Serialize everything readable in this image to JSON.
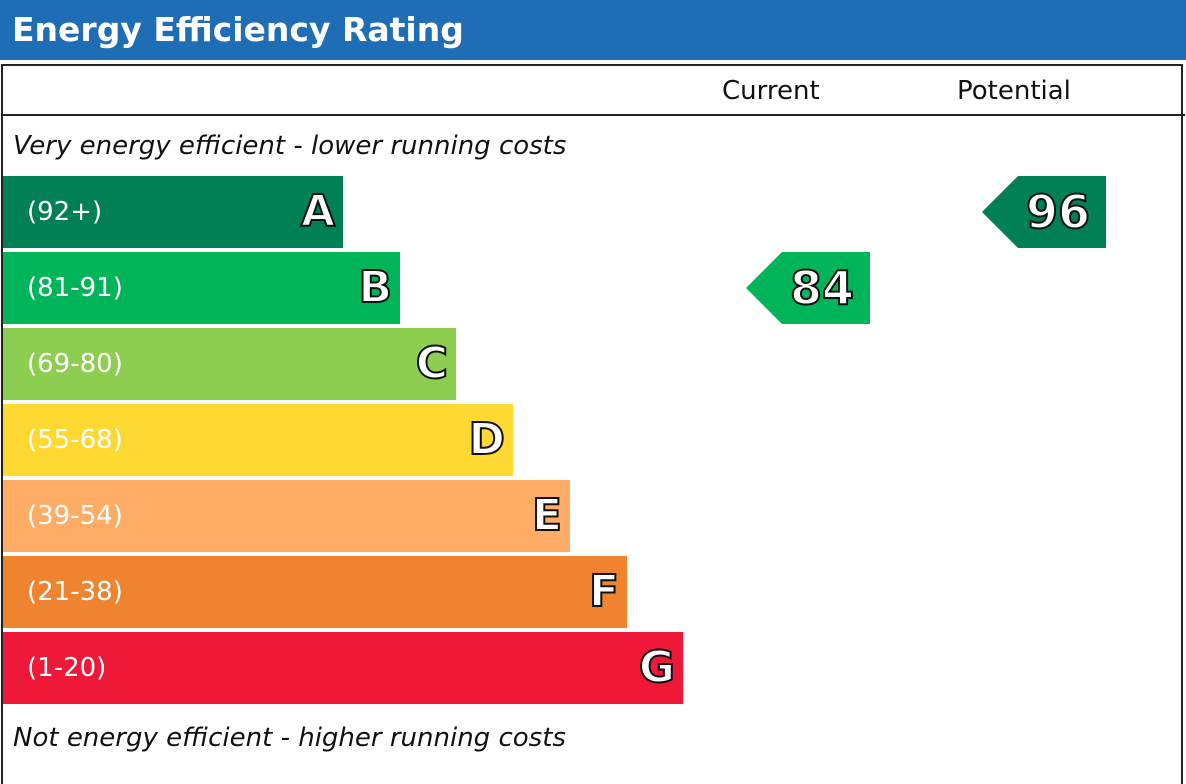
{
  "title": "Energy Efficiency Rating",
  "columns": {
    "current": "Current",
    "potential": "Potential"
  },
  "notes": {
    "top": "Very energy efficient - lower running costs",
    "bottom": "Not energy efficient - higher running costs"
  },
  "chart_data": {
    "type": "bar",
    "categories": [
      "A",
      "B",
      "C",
      "D",
      "E",
      "F",
      "G"
    ],
    "bands": [
      {
        "letter": "A",
        "range": "(92+)",
        "color": "#008054"
      },
      {
        "letter": "B",
        "range": "(81-91)",
        "color": "#00b45a"
      },
      {
        "letter": "C",
        "range": "(69-80)",
        "color": "#8dce50"
      },
      {
        "letter": "D",
        "range": "(55-68)",
        "color": "#ffd832"
      },
      {
        "letter": "E",
        "range": "(39-54)",
        "color": "#ffac66"
      },
      {
        "letter": "F",
        "range": "(21-38)",
        "color": "#f0832f"
      },
      {
        "letter": "G",
        "range": "(1-20)",
        "color": "#ee1839"
      }
    ],
    "current": {
      "value": "84",
      "band": "B",
      "color": "#00b45a"
    },
    "potential": {
      "value": "96",
      "band": "A",
      "color": "#008054"
    }
  }
}
